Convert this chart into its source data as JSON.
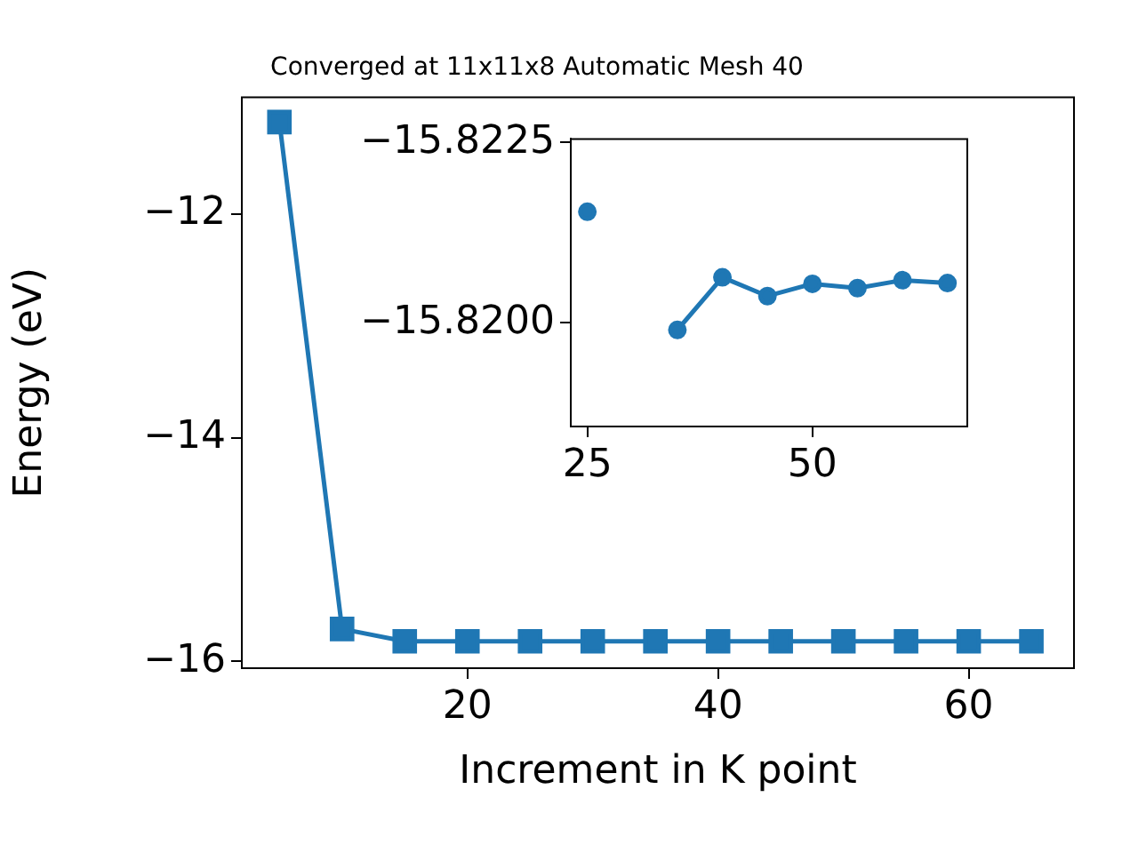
{
  "chart_data": [
    {
      "type": "line",
      "title": "Converged at 11x11x8 Automatic Mesh 40",
      "xlabel": "Increment in K point",
      "ylabel": "Energy (eV)",
      "x": [
        5,
        10,
        15,
        20,
        25,
        30,
        35,
        40,
        45,
        50,
        55,
        60,
        65
      ],
      "series": [
        {
          "color": "#1f77b4",
          "values": [
            -11.18,
            -15.71,
            -15.82,
            -15.82,
            -15.82,
            -15.82,
            -15.82,
            -15.82,
            -15.82,
            -15.82,
            -15.82,
            -15.82,
            -15.82
          ]
        }
      ],
      "xlim": [
        2,
        68.4
      ],
      "xticks": [
        20,
        40,
        60
      ],
      "ylim": [
        -16.06,
        -10.96
      ],
      "yticks": [
        -16,
        -14,
        -12
      ],
      "marker": "square",
      "grid": false,
      "legend": false
    },
    {
      "type": "line",
      "x": [
        25,
        30,
        35,
        40,
        45,
        50,
        55,
        60,
        65
      ],
      "series": [
        {
          "color": "#1f77b4",
          "values": [
            -15.82154,
            null,
            -15.8199,
            -15.82063,
            -15.82037,
            -15.82054,
            -15.82048,
            -15.82059,
            -15.82055
          ]
        }
      ],
      "xlim": [
        23.16,
        67.2
      ],
      "xticks": [
        25,
        50
      ],
      "ylim": [
        -15.81856,
        -15.82255
      ],
      "yticks": [
        -15.8225,
        {
          "value": -15.82,
          "label": "−15.8200"
        }
      ],
      "marker": "circle",
      "grid": false,
      "legend": false
    }
  ]
}
